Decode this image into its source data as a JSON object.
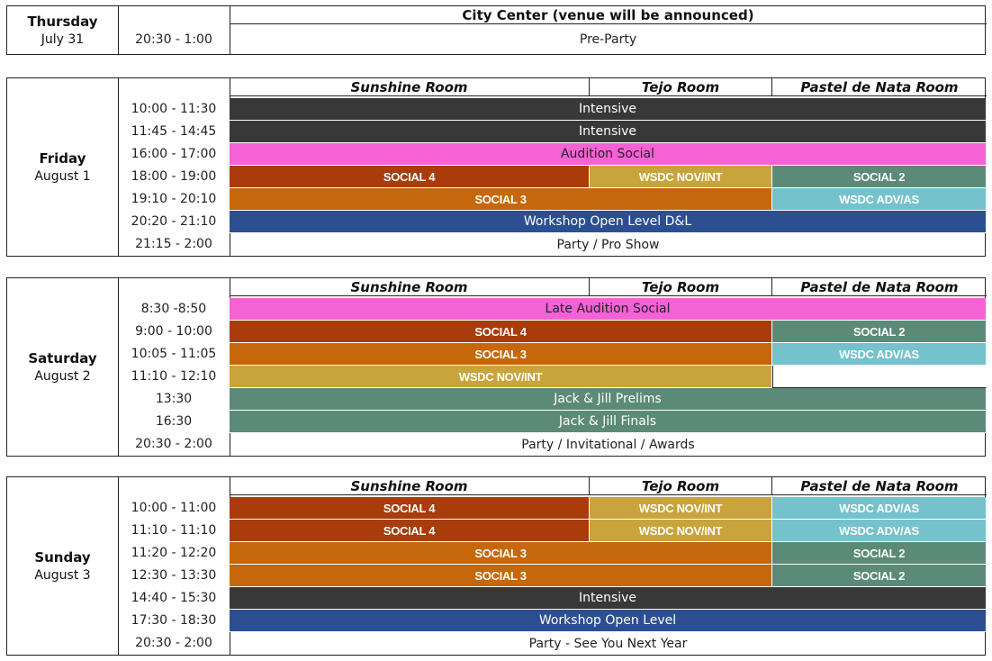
{
  "thursday": {
    "day": "Thursday",
    "date": "July 31",
    "header": "City Center (venue will be announced)",
    "time": "20:30 - 1:00",
    "event": "Pre-Party"
  },
  "rooms": [
    "Sunshine Room",
    "Tejo Room",
    "Pastel de Nata Room"
  ],
  "friday": {
    "day": "Friday",
    "date": "August 1",
    "times": [
      "10:00 - 11:30",
      "11:45 - 14:45",
      "16:00 - 17:00",
      "18:00 - 19:00",
      "19:10 - 20:10",
      "20:20 - 21:10",
      "21:15 - 2:00"
    ],
    "cells": {
      "r0": "Intensive",
      "r1": "Intensive",
      "r2": "Audition Social",
      "r3a": "SOCIAL 4",
      "r3b": "WSDC NOV/INT",
      "r3c": "SOCIAL 2",
      "r4a": "SOCIAL 3",
      "r4c": "WSDC ADV/AS",
      "r5": "Workshop Open Level D&L",
      "r6": "Party / Pro Show"
    }
  },
  "saturday": {
    "day": "Saturday",
    "date": "August 2",
    "times": [
      "8:30 -8:50",
      "9:00 - 10:00",
      "10:05 - 11:05",
      "11:10 - 12:10",
      "13:30",
      "16:30",
      "20:30 - 2:00"
    ],
    "cells": {
      "r0": "Late Audition Social",
      "r1a": "SOCIAL 4",
      "r1c": "SOCIAL 2",
      "r2a": "SOCIAL 3",
      "r2c": "WSDC ADV/AS",
      "r3a": "WSDC NOV/INT",
      "r4": "Jack & Jill Prelims",
      "r5": "Jack & Jill Finals",
      "r6": "Party / Invitational / Awards"
    }
  },
  "sunday": {
    "day": "Sunday",
    "date": "August 3",
    "times": [
      "10:00 - 11:00",
      "11:10 - 11:10",
      "11:20 - 12:20",
      "12:30 - 13:30",
      "14:40 - 15:30",
      "17:30 - 18:30",
      "20:30 - 2:00"
    ],
    "cells": {
      "r0a": "SOCIAL 4",
      "r0b": "WSDC NOV/INT",
      "r0c": "WSDC ADV/AS",
      "r1a": "SOCIAL 4",
      "r1b": "WSDC NOV/INT",
      "r1c": "WSDC ADV/AS",
      "r2a": "SOCIAL 3",
      "r2c": "SOCIAL 2",
      "r3a": "SOCIAL 3",
      "r3c": "SOCIAL 2",
      "r4": "Intensive",
      "r5": "Workshop Open Level",
      "r6": "Party - See You Next Year"
    }
  },
  "colors": {
    "intensive": "#383838",
    "audition": "#f462d5",
    "social4": "#a83c0a",
    "social3": "#c5670a",
    "wsdc_nov_int": "#c9a43d",
    "social2": "#5c8a78",
    "wsdc_adv_as": "#73c2cc",
    "workshop": "#2c4f91"
  }
}
